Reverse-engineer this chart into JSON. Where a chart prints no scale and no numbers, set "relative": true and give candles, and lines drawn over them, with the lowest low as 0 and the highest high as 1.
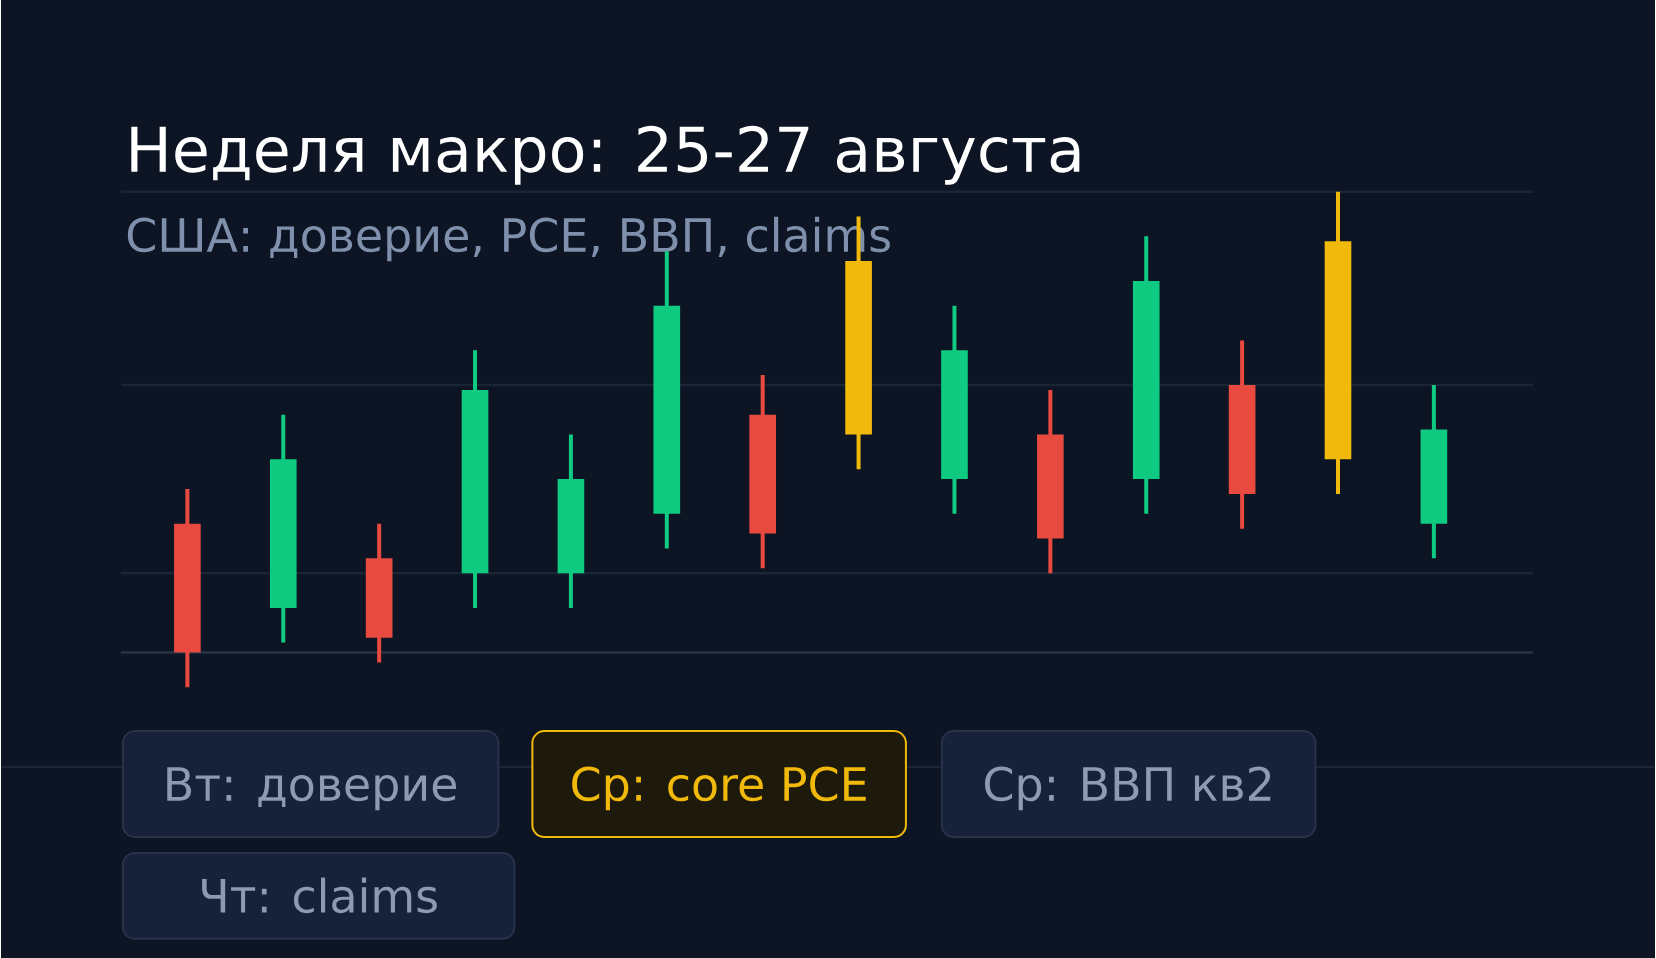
{
  "chart_data": {
    "type": "candlestick",
    "title": "Неделя макро: 25-27 августа",
    "subtitle": "США: доверие, PCE, ВВП, claims",
    "categories": [
      null,
      null,
      null,
      null,
      null,
      null,
      null,
      null,
      null,
      null,
      null,
      null,
      null,
      null
    ],
    "ohlc": [
      [
        0.33,
        0.4,
        0,
        0.07
      ],
      [
        0.16,
        0.55,
        0.09,
        0.46
      ],
      [
        0.26,
        0.33,
        0.05,
        0.1
      ],
      [
        0.23,
        0.68,
        0.16,
        0.6
      ],
      [
        0.23,
        0.51,
        0.16,
        0.42
      ],
      [
        0.35,
        0.88,
        0.28,
        0.77
      ],
      [
        0.55,
        0.63,
        0.24,
        0.31
      ],
      [
        0.51,
        0.95,
        0.44,
        0.86
      ],
      [
        0.42,
        0.77,
        0.35,
        0.68
      ],
      [
        0.51,
        0.6,
        0.23,
        0.3
      ],
      [
        0.42,
        0.91,
        0.35,
        0.82
      ],
      [
        0.61,
        0.7,
        0.32,
        0.39
      ],
      [
        0.46,
        1,
        0.39,
        0.9
      ],
      [
        0.33,
        0.61,
        0.26,
        0.52
      ]
    ],
    "colors": [
      "#e84a3f",
      "#0ecb81",
      "#e84a3f",
      "#0ecb81",
      "#0ecb81",
      "#0ecb81",
      "#e84a3f",
      "#f0b90b",
      "#0ecb81",
      "#e84a3f",
      "#0ecb81",
      "#e84a3f",
      "#f0b90b",
      "#0ecb81"
    ],
    "relative": true,
    "ref_lines": [
      {
        "axis": "y",
        "value": 1,
        "color": "#1a2536"
      },
      {
        "axis": "y",
        "value": 0.61,
        "color": "#1a2536"
      },
      {
        "axis": "y",
        "value": 0.23,
        "color": "#1a2536"
      },
      {
        "axis": "y",
        "value": 0.07,
        "color": "#263247"
      }
    ],
    "annotations": [
      "Вт: доверие",
      "Ср: core PCE",
      "Ср: ВВП кв2",
      "Чт: claims"
    ]
  }
}
